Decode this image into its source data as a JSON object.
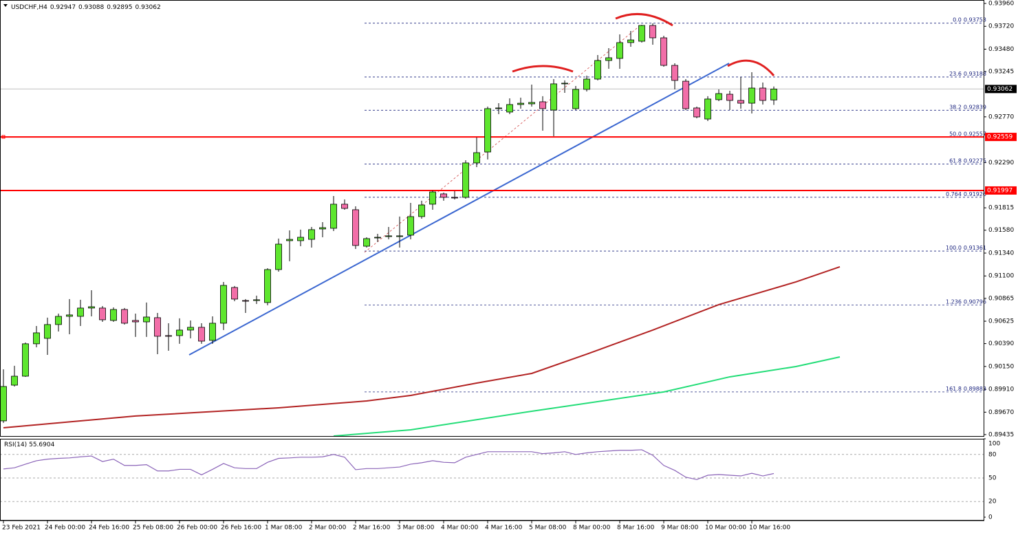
{
  "chart_data": {
    "type": "candlestick",
    "title": "USDCHF,H4",
    "ohlc": [
      0.92947,
      0.93088,
      0.92895,
      0.93062
    ],
    "ylim": [
      0.8942,
      0.93996
    ],
    "yticks": [
      {
        "value": 0.9396,
        "label": "0.93960"
      },
      {
        "value": 0.9372,
        "label": "0.93720"
      },
      {
        "value": 0.9348,
        "label": "0.93480"
      },
      0.93245,
      {
        "value": 0.9277,
        "label": "0.92770"
      },
      {
        "value": 0.9229,
        "label": "0.92290"
      },
      0.91815,
      {
        "value": 0.9158,
        "label": "0.91580"
      },
      {
        "value": 0.9134,
        "label": "0.91340"
      },
      {
        "value": 0.911,
        "label": "0.91100"
      },
      0.90865,
      0.90625,
      {
        "value": 0.9039,
        "label": "0.90390"
      },
      {
        "value": 0.9015,
        "label": "0.90150"
      },
      {
        "value": 0.8991,
        "label": "0.89910"
      },
      {
        "value": 0.8967,
        "label": "0.89670"
      },
      0.89435
    ],
    "up_color": "#5ee62e",
    "down_color": "#f26ea8",
    "candles": [
      [
        0.89579,
        0.9012,
        0.89558,
        0.8994
      ],
      [
        0.89954,
        0.90157,
        0.8994,
        0.90048
      ],
      [
        0.90048,
        0.90402,
        0.90041,
        0.90388
      ],
      [
        0.90388,
        0.90575,
        0.90351,
        0.90503
      ],
      [
        0.90445,
        0.90662,
        0.90272,
        0.9059
      ],
      [
        0.9059,
        0.90705,
        0.90517,
        0.90676
      ],
      [
        0.90676,
        0.90857,
        0.90488,
        0.90691
      ],
      [
        0.90676,
        0.9085,
        0.90575,
        0.90763
      ],
      [
        0.90763,
        0.9095,
        0.90676,
        0.90777
      ],
      [
        0.90763,
        0.90784,
        0.90618,
        0.9064
      ],
      [
        0.90633,
        0.9077,
        0.90618,
        0.90748
      ],
      [
        0.90748,
        0.90763,
        0.9059,
        0.90604
      ],
      [
        0.90633,
        0.90705,
        0.9046,
        0.90618
      ],
      [
        0.90618,
        0.90821,
        0.9046,
        0.90669
      ],
      [
        0.90662,
        0.90712,
        0.90279,
        0.90467
      ],
      [
        0.90474,
        0.90604,
        0.90315,
        0.90467
      ],
      [
        0.90474,
        0.90655,
        0.90388,
        0.90532
      ],
      [
        0.90532,
        0.90633,
        0.90445,
        0.90561
      ],
      [
        0.90561,
        0.90604,
        0.90388,
        0.90416
      ],
      [
        0.90424,
        0.90676,
        0.90388,
        0.90604
      ],
      [
        0.90604,
        0.91037,
        0.90532,
        0.91001
      ],
      [
        0.90979,
        0.90994,
        0.90835,
        0.90857
      ],
      [
        0.90842,
        0.90857,
        0.90712,
        0.90835
      ],
      [
        0.90842,
        0.90893,
        0.90806,
        0.9085
      ],
      [
        0.90821,
        0.91181,
        0.90792,
        0.91167
      ],
      [
        0.91167,
        0.91492,
        0.91145,
        0.91434
      ],
      [
        0.9147,
        0.91578,
        0.91254,
        0.91484
      ],
      [
        0.9147,
        0.91586,
        0.91412,
        0.91506
      ],
      [
        0.91484,
        0.91614,
        0.91398,
        0.91586
      ],
      [
        0.91593,
        0.91665,
        0.91506,
        0.91607
      ],
      [
        0.916,
        0.91939,
        0.91571,
        0.91853
      ],
      [
        0.91853,
        0.91903,
        0.91795,
        0.91809
      ],
      [
        0.91795,
        0.91831,
        0.91383,
        0.9142
      ],
      [
        0.91412,
        0.91506,
        0.91398,
        0.91492
      ],
      [
        0.91499,
        0.91542,
        0.91456,
        0.91506
      ],
      [
        0.91513,
        0.91614,
        0.91484,
        0.91521
      ],
      [
        0.91513,
        0.91723,
        0.91398,
        0.91521
      ],
      [
        0.91528,
        0.91867,
        0.91484,
        0.91723
      ],
      [
        0.91723,
        0.91889,
        0.91701,
        0.91845
      ],
      [
        0.91853,
        0.91997,
        0.91795,
        0.91982
      ],
      [
        0.91961,
        0.91975,
        0.91889,
        0.91925
      ],
      [
        0.91925,
        0.9199,
        0.91903,
        0.91918
      ],
      [
        0.91925,
        0.92314,
        0.9191,
        0.92286
      ],
      [
        0.92286,
        0.92553,
        0.92242,
        0.92394
      ],
      [
        0.92401,
        0.92877,
        0.92322,
        0.92856
      ],
      [
        0.92856,
        0.92913,
        0.92798,
        0.92863
      ],
      [
        0.9282,
        0.92964,
        0.92798,
        0.92899
      ],
      [
        0.92899,
        0.92971,
        0.92856,
        0.92913
      ],
      [
        0.92906,
        0.93108,
        0.92877,
        0.92921
      ],
      [
        0.92928,
        0.92986,
        0.92625,
        0.92856
      ],
      [
        0.92841,
        0.93166,
        0.92567,
        0.93116
      ],
      [
        0.93116,
        0.93152,
        0.93022,
        0.93123
      ],
      [
        0.92856,
        0.93094,
        0.92841,
        0.93058
      ],
      [
        0.93058,
        0.93202,
        0.93036,
        0.93166
      ],
      [
        0.93166,
        0.93419,
        0.93152,
        0.93361
      ],
      [
        0.93361,
        0.93491,
        0.93274,
        0.9339
      ],
      [
        0.93383,
        0.93635,
        0.93274,
        0.93549
      ],
      [
        0.93549,
        0.93671,
        0.93505,
        0.93577
      ],
      [
        0.93563,
        0.93736,
        0.93549,
        0.93729
      ],
      [
        0.93729,
        0.93751,
        0.93527,
        0.93599
      ],
      [
        0.93599,
        0.93621,
        0.93296,
        0.9331
      ],
      [
        0.9331,
        0.93332,
        0.93058,
        0.93152
      ],
      [
        0.93144,
        0.93166,
        0.92841,
        0.92856
      ],
      [
        0.92863,
        0.92877,
        0.92755,
        0.92769
      ],
      [
        0.92747,
        0.92986,
        0.92726,
        0.92957
      ],
      [
        0.9295,
        0.93058,
        0.92935,
        0.93014
      ],
      [
        0.93007,
        0.93043,
        0.92841,
        0.92942
      ],
      [
        0.92942,
        0.93188,
        0.92856,
        0.92913
      ],
      [
        0.92913,
        0.93238,
        0.92805,
        0.93072
      ],
      [
        0.93072,
        0.9313,
        0.92899,
        0.92942
      ],
      [
        0.92947,
        0.93088,
        0.92895,
        0.93062
      ]
    ],
    "ma": [
      {
        "color": "#b22222",
        "x": [
          0,
          12,
          25,
          33,
          37,
          43,
          48,
          53,
          59,
          65,
          72,
          76
        ],
        "values": [
          0.89507,
          0.8963,
          0.89716,
          0.89788,
          0.89846,
          0.89976,
          0.90077,
          0.90279,
          0.90532,
          0.90799,
          0.91037,
          0.91196
        ]
      },
      {
        "color": "#22dd77",
        "x": [
          30,
          37,
          48,
          60,
          66,
          72,
          76
        ],
        "values": [
          0.8942,
          0.89485,
          0.8968,
          0.89883,
          0.90041,
          0.90149,
          0.9025
        ]
      }
    ],
    "last_price": 0.93062,
    "hlines": [
      {
        "value": 0.92559,
        "color": "#ff0000"
      },
      {
        "value": 0.91997,
        "color": "#ff0000"
      }
    ],
    "fib": [
      {
        "ratio": "0.0",
        "value": 0.93753
      },
      {
        "ratio": "23.6",
        "value": 0.93188
      },
      {
        "ratio": "38.2",
        "value": 0.92839
      },
      {
        "ratio": "50.0",
        "value": 0.92557
      },
      {
        "ratio": "61.8",
        "value": 0.92275
      },
      {
        "ratio": "0.764",
        "value": 0.91926
      },
      {
        "ratio": "100.0",
        "value": 0.91361
      },
      {
        "ratio": "1.236",
        "value": 0.90796
      },
      {
        "ratio": "161.8",
        "value": 0.89883
      }
    ],
    "fib_color": "#1a237e",
    "x_labels": [
      "23 Feb 2021",
      "24 Feb 00:00",
      "24 Feb 16:00",
      "25 Feb 08:00",
      "26 Feb 00:00",
      "26 Feb 16:00",
      "1 Mar 08:00",
      "2 Mar 00:00",
      "2 Mar 16:00",
      "3 Mar 08:00",
      "4 Mar 00:00",
      "4 Mar 16:00",
      "5 Mar 08:00",
      "8 Mar 00:00",
      "8 Mar 16:00",
      "9 Mar 08:00",
      "10 Mar 00:00",
      "10 Mar 16:00"
    ],
    "rsi": {
      "name": "RSI(14)",
      "value": 55.6904,
      "color": "#8a63b8",
      "ylim": [
        0,
        100
      ],
      "yticks": [
        100,
        80,
        50,
        20,
        0
      ],
      "values": [
        61.5,
        63,
        67.6,
        72,
        74,
        75,
        75.6,
        77,
        78,
        71,
        74,
        66,
        66,
        67,
        59,
        59,
        61,
        61,
        54,
        61,
        68.5,
        63,
        62,
        62,
        70,
        75,
        75.6,
        76.5,
        76.5,
        77,
        80,
        76.5,
        60.6,
        62,
        62,
        63,
        64,
        67.6,
        69.4,
        72,
        70,
        69.4,
        76.5,
        80,
        83.5,
        83.5,
        83.5,
        83.5,
        83.5,
        81,
        82,
        83.5,
        80,
        82,
        83.5,
        84.4,
        85.3,
        85.3,
        86,
        79,
        66,
        59.7,
        51,
        48,
        53.5,
        54.4,
        53.5,
        52.6,
        56,
        52.6,
        55.69
      ]
    }
  }
}
